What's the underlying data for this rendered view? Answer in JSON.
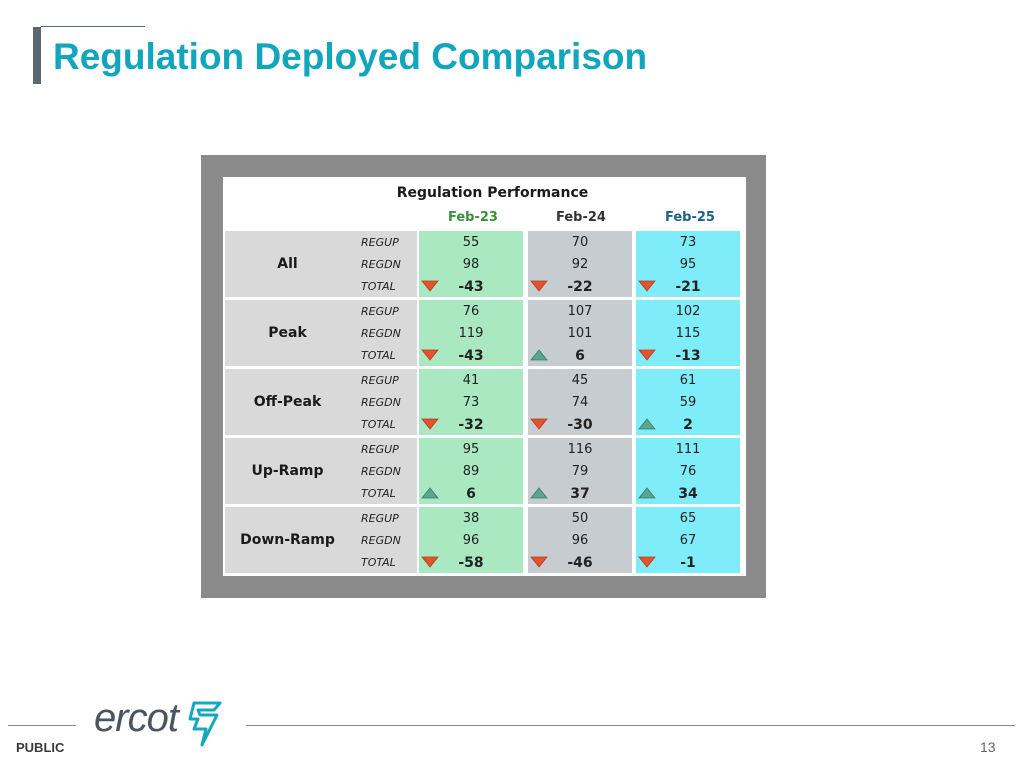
{
  "slide": {
    "title": "Regulation Deployed Comparison",
    "footer_label": "PUBLIC",
    "logo_text": "ercot",
    "page_number": "13"
  },
  "table": {
    "caption": "Regulation Performance",
    "columns": [
      "Feb-23",
      "Feb-24",
      "Feb-25"
    ],
    "column_colors": [
      "#a9e8c1",
      "#c7ccd1",
      "#7fedf9"
    ],
    "arrow_colors": {
      "down": "#e2542f",
      "up": "#5aa58e"
    },
    "groups": [
      {
        "name": "All",
        "rows": [
          "REGUP",
          "REGDN",
          "TOTAL"
        ],
        "values": [
          [
            "55",
            "98",
            "-43"
          ],
          [
            "70",
            "92",
            "-22"
          ],
          [
            "73",
            "95",
            "-21"
          ]
        ],
        "trend": [
          "down",
          "down",
          "down"
        ]
      },
      {
        "name": "Peak",
        "rows": [
          "REGUP",
          "REGDN",
          "TOTAL"
        ],
        "values": [
          [
            "76",
            "119",
            "-43"
          ],
          [
            "107",
            "101",
            "6"
          ],
          [
            "102",
            "115",
            "-13"
          ]
        ],
        "trend": [
          "down",
          "up",
          "down"
        ]
      },
      {
        "name": "Off-Peak",
        "rows": [
          "REGUP",
          "REGDN",
          "TOTAL"
        ],
        "values": [
          [
            "41",
            "73",
            "-32"
          ],
          [
            "45",
            "74",
            "-30"
          ],
          [
            "61",
            "59",
            "2"
          ]
        ],
        "trend": [
          "down",
          "down",
          "up"
        ]
      },
      {
        "name": "Up-Ramp",
        "rows": [
          "REGUP",
          "REGDN",
          "TOTAL"
        ],
        "values": [
          [
            "95",
            "89",
            "6"
          ],
          [
            "116",
            "79",
            "37"
          ],
          [
            "111",
            "76",
            "34"
          ]
        ],
        "trend": [
          "up",
          "up",
          "up"
        ]
      },
      {
        "name": "Down-Ramp",
        "rows": [
          "REGUP",
          "REGDN",
          "TOTAL"
        ],
        "values": [
          [
            "38",
            "96",
            "-58"
          ],
          [
            "50",
            "96",
            "-46"
          ],
          [
            "65",
            "67",
            "-1"
          ]
        ],
        "trend": [
          "down",
          "down",
          "down"
        ]
      }
    ]
  }
}
